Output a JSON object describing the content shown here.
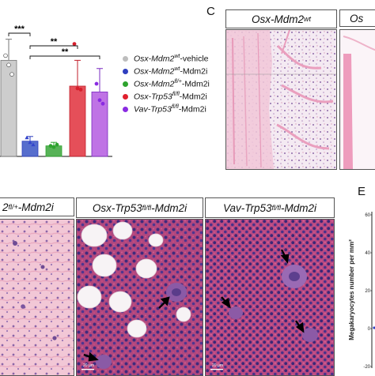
{
  "chart_data": {
    "type": "bar",
    "categories": [
      "Osx-Mdm2wt-vehicle",
      "Osx-Mdm2wt-Mdm2i",
      "Osx-Mdm2fl/+-Mdm2i",
      "Osx-Trp53fl/fl-Mdm2i",
      "Vav-Trp53fl/fl-Mdm2i"
    ],
    "values": [
      82,
      13,
      9,
      60,
      55
    ],
    "errors": [
      18,
      4,
      3,
      22,
      20
    ],
    "points": [
      [
        86,
        78,
        70
      ],
      [
        16,
        12,
        10
      ],
      [
        9,
        8,
        10
      ],
      [
        96,
        58,
        57
      ],
      [
        62,
        48,
        45
      ]
    ],
    "colors": [
      "#c8c8c8",
      "#3a55c4",
      "#3aa63a",
      "#e0303c",
      "#b45ae0"
    ],
    "ylim": [
      0,
      120
    ],
    "significance": [
      {
        "from": 0,
        "to": 1,
        "label": "***"
      },
      {
        "from": 1,
        "to": 3,
        "label": "**"
      },
      {
        "from": 1,
        "to": 4,
        "label": "**"
      }
    ]
  },
  "legend": [
    {
      "base": "Osx-Mdm2",
      "sup": "wt",
      "suffix": "-vehicle",
      "color": "#bdbdbd"
    },
    {
      "base": "Osx-Mdm2",
      "sup": "wt",
      "suffix": "-Mdm2i",
      "color": "#2f3fbf"
    },
    {
      "base": "Osx-Mdm2",
      "sup": "fl/+",
      "suffix": "-Mdm2i",
      "color": "#2ea32e"
    },
    {
      "base": "Osx-Trp53",
      "sup": "fl/fl",
      "suffix": "-Mdm2i",
      "color": "#e0202e"
    },
    {
      "base": "Vav-Trp53",
      "sup": "fl/fl",
      "suffix": "-Mdm2i",
      "color": "#8a2be2"
    }
  ],
  "panel_c": {
    "letter": "C",
    "title1_base": "Osx-Mdm2",
    "title1_sup": "wt",
    "title2": "Os"
  },
  "panel_d": {
    "title1_prefix": "2",
    "title1_sup": "fl/+",
    "title1_suffix": "-Mdm2i",
    "title2_base": "Osx-Trp53",
    "title2_sup": "fl/fl",
    "title2_suffix": "-Mdm2i",
    "title3_base": "Vav-Trp53",
    "title3_sup": "fl/fl",
    "title3_suffix": "-Mdm2i",
    "scale1": "20 µm",
    "scale2": "20 µm"
  },
  "panel_e": {
    "letter": "E",
    "ylabel": "Megakaryocytes number per mm²",
    "ticks": [
      "60",
      "40",
      "20",
      "0",
      "-20"
    ]
  }
}
